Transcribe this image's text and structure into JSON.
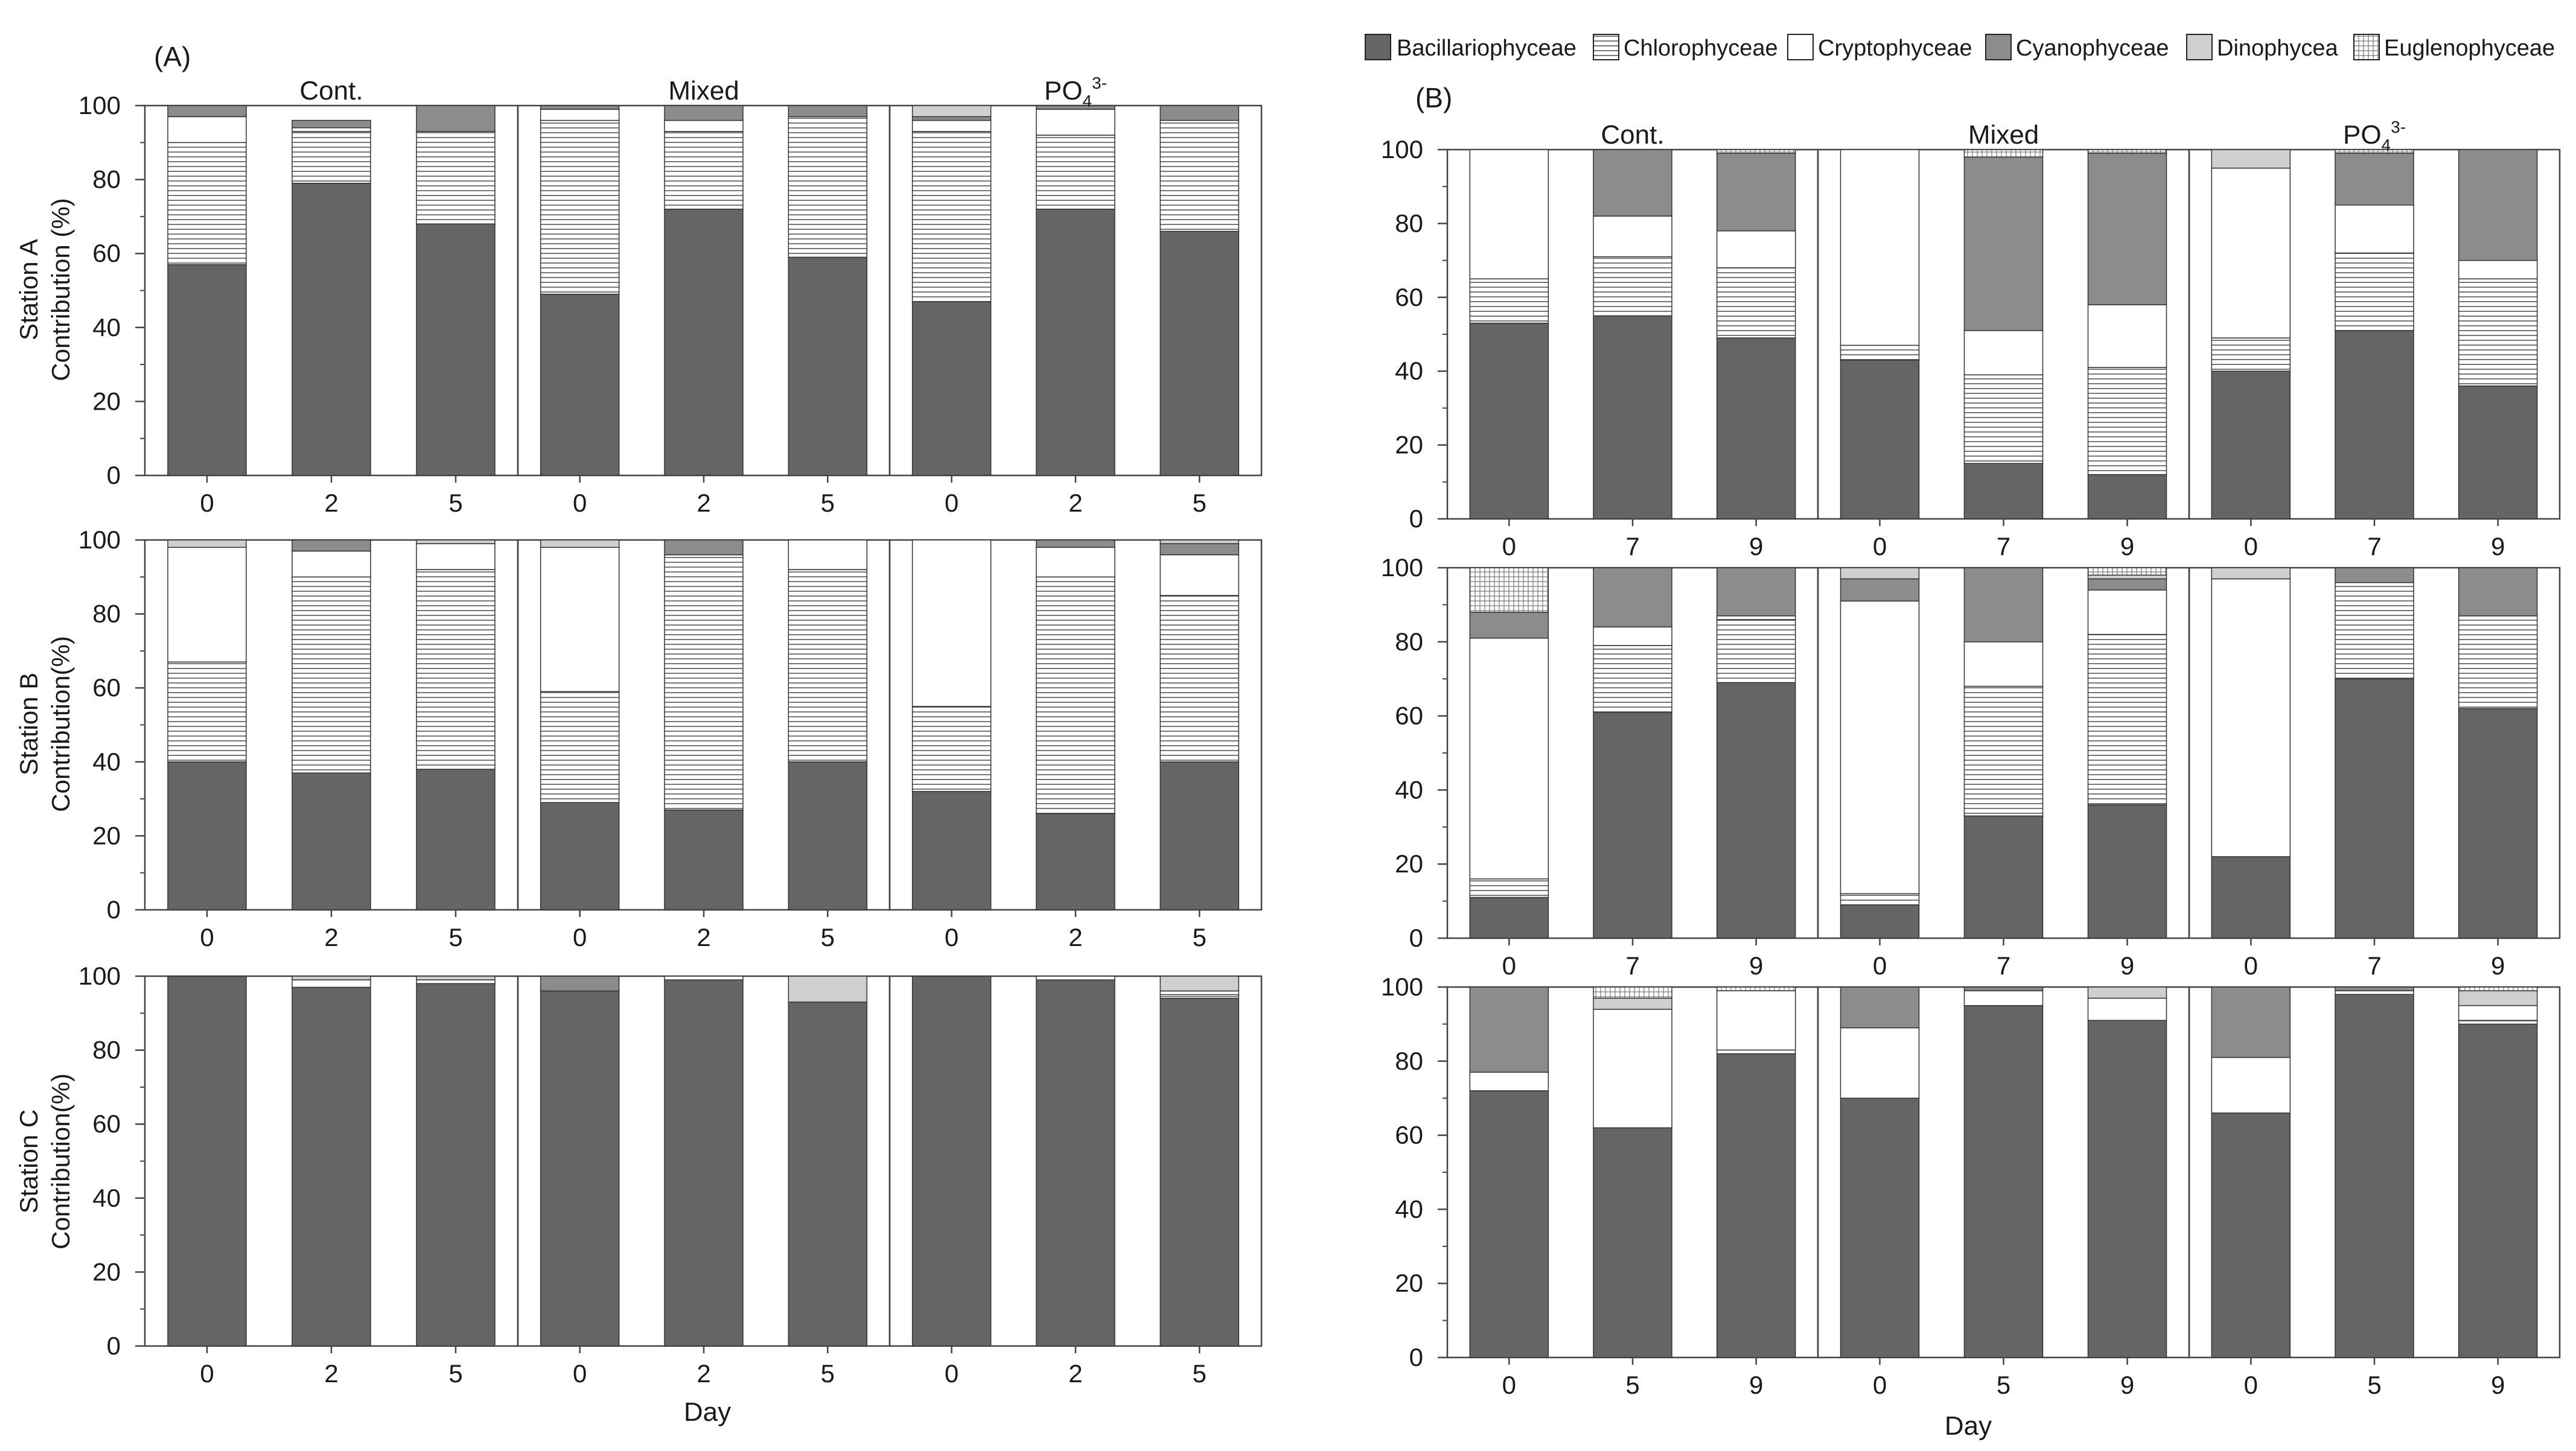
{
  "legend": [
    "Bacillariophyceae",
    "Chlorophyceae",
    "Cryptophyceae",
    "Cyanophyceae",
    "Dinophycea",
    "Euglenophyceae"
  ],
  "ylabel_common": "Contribution",
  "chart_data": [
    {
      "panel": "A",
      "panel_label": "(A)",
      "type": "bar",
      "stacked": true,
      "xlabel": "Day",
      "groups": [
        "Cont.",
        "Mixed",
        "PO4 3-"
      ],
      "group_text": [
        {
          "base": "Cont."
        },
        {
          "base": "Mixed"
        },
        {
          "base": "PO",
          "sub": "4",
          "sup": "3-"
        }
      ],
      "categories": [
        "0",
        "2",
        "5"
      ],
      "ylim": [
        0,
        100
      ],
      "yticks": [
        "0",
        "20",
        "40",
        "60",
        "80",
        "100"
      ],
      "rows": [
        {
          "station": "Station A",
          "ylabel": "Contribution (%)",
          "bars": [
            [
              57,
              33,
              7,
              3,
              0,
              0
            ],
            [
              79,
              14,
              1,
              2,
              0,
              0
            ],
            [
              68,
              25,
              0,
              7,
              0,
              0
            ],
            [
              49,
              47,
              3,
              1,
              0,
              0
            ],
            [
              72,
              21,
              3,
              4,
              0,
              0
            ],
            [
              59,
              38,
              0,
              3,
              0,
              0
            ],
            [
              47,
              46,
              3,
              1,
              3,
              0
            ],
            [
              72,
              20,
              7,
              1,
              0,
              0
            ],
            [
              66,
              30,
              0,
              4,
              0,
              0
            ]
          ]
        },
        {
          "station": "Station B",
          "ylabel": "Contribution(%)",
          "bars": [
            [
              40,
              27,
              31,
              0,
              2,
              0
            ],
            [
              37,
              53,
              7,
              3,
              0,
              0
            ],
            [
              38,
              54,
              7,
              0,
              1,
              0
            ],
            [
              29,
              30,
              39,
              0,
              2,
              0
            ],
            [
              27,
              69,
              0,
              4,
              0,
              0
            ],
            [
              40,
              52,
              8,
              0,
              0,
              0
            ],
            [
              32,
              23,
              45,
              0,
              0,
              0
            ],
            [
              26,
              64,
              8,
              2,
              0,
              0
            ],
            [
              40,
              45,
              11,
              3,
              1,
              0
            ]
          ]
        },
        {
          "station": "Station C",
          "ylabel": "Contribution(%)",
          "bars": [
            [
              100,
              0,
              0,
              0,
              0,
              0
            ],
            [
              97,
              0,
              2,
              0,
              1,
              0
            ],
            [
              98,
              0,
              1,
              0,
              1,
              0
            ],
            [
              96,
              0,
              0,
              4,
              0,
              0
            ],
            [
              99,
              0,
              1,
              0,
              0,
              0
            ],
            [
              93,
              0,
              0,
              0,
              7,
              0
            ],
            [
              100,
              0,
              0,
              0,
              0,
              0
            ],
            [
              99,
              0,
              1,
              0,
              0,
              0
            ],
            [
              94,
              1,
              1,
              0,
              4,
              0
            ]
          ]
        }
      ]
    },
    {
      "panel": "B",
      "panel_label": "(B)",
      "type": "bar",
      "stacked": true,
      "xlabel": "Day",
      "groups": [
        "Cont.",
        "Mixed",
        "PO4 3-"
      ],
      "group_text": [
        {
          "base": "Cont."
        },
        {
          "base": "Mixed"
        },
        {
          "base": "PO",
          "sub": "4",
          "sup": "3-"
        }
      ],
      "categories": [
        "0",
        "7",
        "9"
      ],
      "categories_station_c": [
        "0",
        "5",
        "9"
      ],
      "ylim": [
        0,
        100
      ],
      "yticks": [
        "0",
        "20",
        "40",
        "60",
        "80",
        "100"
      ],
      "rows": [
        {
          "station": "Station A",
          "bars": [
            [
              53,
              12,
              35,
              0,
              0,
              0
            ],
            [
              55,
              16,
              11,
              18,
              0,
              0
            ],
            [
              49,
              19,
              10,
              21,
              0,
              1
            ],
            [
              43,
              4,
              53,
              0,
              0,
              0
            ],
            [
              15,
              24,
              12,
              47,
              0,
              2
            ],
            [
              12,
              29,
              17,
              41,
              0,
              1
            ],
            [
              40,
              9,
              46,
              0,
              5,
              0
            ],
            [
              51,
              21,
              13,
              14,
              0,
              1
            ],
            [
              36,
              29,
              5,
              30,
              0,
              0
            ]
          ]
        },
        {
          "station": "Station B",
          "bars": [
            [
              11,
              5,
              65,
              7,
              0,
              12
            ],
            [
              61,
              18,
              5,
              16,
              0,
              0
            ],
            [
              69,
              17,
              1,
              13,
              0,
              0
            ],
            [
              9,
              3,
              79,
              6,
              3,
              0
            ],
            [
              33,
              35,
              12,
              20,
              0,
              0
            ],
            [
              36,
              46,
              12,
              3,
              1,
              2
            ],
            [
              22,
              0,
              75,
              0,
              3,
              0
            ],
            [
              70,
              26,
              0,
              4,
              0,
              0
            ],
            [
              62,
              25,
              0,
              13,
              0,
              0
            ]
          ]
        },
        {
          "station": "Station C",
          "bars": [
            [
              72,
              0,
              5,
              23,
              0,
              0
            ],
            [
              62,
              0,
              32,
              0,
              3,
              3
            ],
            [
              82,
              1,
              16,
              0,
              0,
              1
            ],
            [
              70,
              0,
              19,
              11,
              0,
              0
            ],
            [
              95,
              0,
              4,
              1,
              0,
              0
            ],
            [
              91,
              0,
              6,
              0,
              3,
              0
            ],
            [
              66,
              0,
              15,
              19,
              0,
              0
            ],
            [
              98,
              0,
              1,
              1,
              0,
              0
            ],
            [
              90,
              1,
              4,
              0,
              4,
              1
            ]
          ]
        }
      ]
    }
  ]
}
